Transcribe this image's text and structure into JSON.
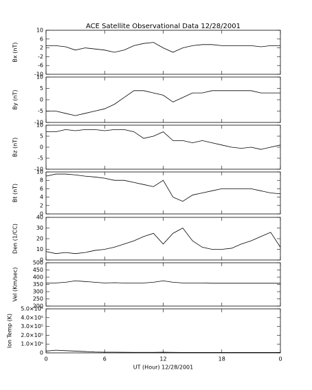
{
  "chart_data": [
    {
      "type": "line",
      "title": "ACE Satellite Observational Data   12/28/2001",
      "ylabel": "Bx (nT)",
      "x": [
        0,
        1,
        2,
        3,
        4,
        5,
        6,
        7,
        8,
        9,
        10,
        11,
        12,
        13,
        14,
        15,
        16,
        17,
        18,
        19,
        20,
        21,
        22,
        23,
        24
      ],
      "values": [
        3,
        3,
        2.5,
        1,
        2,
        1.5,
        1,
        0,
        1,
        3,
        4,
        4.5,
        2,
        0,
        2,
        3,
        3.5,
        3.5,
        3,
        3,
        3,
        3,
        2.5,
        3,
        3
      ],
      "xlim": [
        0,
        24
      ],
      "ylim": [
        -10,
        10
      ],
      "yticks": [
        10,
        6,
        2,
        -2,
        -6,
        -10
      ],
      "color": "#000000"
    },
    {
      "type": "line",
      "ylabel": "By (nT)",
      "x": [
        0,
        1,
        2,
        3,
        4,
        5,
        6,
        7,
        8,
        9,
        10,
        11,
        12,
        13,
        14,
        15,
        16,
        17,
        18,
        19,
        20,
        21,
        22,
        23,
        24
      ],
      "values": [
        -5,
        -5,
        -6,
        -7,
        -6,
        -5,
        -4,
        -2,
        1,
        4,
        4,
        3,
        2,
        -1,
        1,
        3,
        3,
        4,
        4,
        4,
        4,
        4,
        3,
        3,
        3
      ],
      "xlim": [
        0,
        24
      ],
      "ylim": [
        -10,
        10
      ],
      "yticks": [
        10,
        5,
        0,
        -5,
        -10
      ],
      "color": "#000000"
    },
    {
      "type": "line",
      "ylabel": "Bz (nT)",
      "x": [
        0,
        1,
        2,
        3,
        4,
        5,
        6,
        7,
        8,
        9,
        10,
        11,
        12,
        13,
        14,
        15,
        16,
        17,
        18,
        19,
        20,
        21,
        22,
        23,
        24
      ],
      "values": [
        7,
        7,
        8,
        7.5,
        8,
        8,
        7.5,
        8,
        8,
        7,
        4,
        5,
        7,
        3,
        3,
        2,
        3,
        2,
        1,
        0,
        -0.5,
        0,
        -1,
        0,
        1
      ],
      "xlim": [
        0,
        24
      ],
      "ylim": [
        -10,
        10
      ],
      "yticks": [
        10,
        5,
        0,
        -5,
        -10
      ],
      "color": "#000000"
    },
    {
      "type": "line",
      "ylabel": "Bt (nT)",
      "x": [
        0,
        1,
        2,
        3,
        4,
        5,
        6,
        7,
        8,
        9,
        10,
        11,
        12,
        13,
        14,
        15,
        16,
        17,
        18,
        19,
        20,
        21,
        22,
        23,
        24
      ],
      "values": [
        9,
        9.5,
        9.5,
        9.3,
        9,
        8.8,
        8.5,
        8,
        8,
        7.5,
        7,
        6.5,
        8,
        4,
        3,
        4.5,
        5,
        5.5,
        6,
        6,
        6,
        6,
        5.5,
        5,
        4.8
      ],
      "xlim": [
        0,
        24
      ],
      "ylim": [
        0,
        10
      ],
      "yticks": [
        10,
        8,
        6,
        4,
        2,
        0
      ],
      "color": "#000000"
    },
    {
      "type": "line",
      "ylabel": "Den (1/CC)",
      "x": [
        0,
        1,
        2,
        3,
        4,
        5,
        6,
        7,
        8,
        9,
        10,
        11,
        12,
        13,
        14,
        15,
        16,
        17,
        18,
        19,
        20,
        21,
        22,
        23,
        24
      ],
      "values": [
        8,
        6,
        7,
        6,
        7,
        9,
        10,
        12,
        15,
        18,
        22,
        25,
        15,
        25,
        30,
        18,
        12,
        10,
        10,
        11,
        15,
        18,
        22,
        26,
        12
      ],
      "xlim": [
        0,
        24
      ],
      "ylim": [
        0,
        40
      ],
      "yticks": [
        40,
        30,
        20,
        10,
        0
      ],
      "color": "#000000"
    },
    {
      "type": "line",
      "ylabel": "Vel (Km/sec)",
      "x": [
        0,
        1,
        2,
        3,
        4,
        5,
        6,
        7,
        8,
        9,
        10,
        11,
        12,
        13,
        14,
        15,
        16,
        17,
        18,
        19,
        20,
        21,
        22,
        23,
        24
      ],
      "values": [
        360,
        360,
        365,
        375,
        370,
        365,
        360,
        362,
        360,
        360,
        360,
        365,
        375,
        365,
        360,
        360,
        360,
        358,
        358,
        358,
        358,
        358,
        358,
        358,
        358
      ],
      "xlim": [
        0,
        24
      ],
      "ylim": [
        200,
        500
      ],
      "yticks": [
        500,
        450,
        400,
        350,
        300,
        250,
        200
      ],
      "color": "#000000"
    },
    {
      "type": "line",
      "ylabel": "Ion Temp (K)",
      "xlabel": "UT (Hour)   12/28/2001",
      "x": [
        0,
        1,
        2,
        3,
        4,
        5,
        6,
        7,
        8,
        9,
        10,
        11,
        12,
        13,
        14,
        15,
        16,
        17,
        18,
        19,
        20,
        21,
        22,
        23,
        24
      ],
      "values": [
        20000,
        30000,
        25000,
        20000,
        15000,
        10000,
        8000,
        8000,
        7000,
        6000,
        6000,
        6000,
        8000,
        6000,
        5000,
        5000,
        5000,
        5000,
        5000,
        5000,
        5000,
        5000,
        5000,
        5000,
        5000
      ],
      "xlim": [
        0,
        24
      ],
      "ylim": [
        0,
        500000
      ],
      "yticks": [
        {
          "value": 500000,
          "label": "5.0×10⁵"
        },
        {
          "value": 400000,
          "label": "4.0×10⁵"
        },
        {
          "value": 300000,
          "label": "3.0×10⁵"
        },
        {
          "value": 200000,
          "label": "2.0×10⁵"
        },
        {
          "value": 100000,
          "label": "1.0×10⁵"
        },
        0
      ],
      "xticks": [
        0,
        6,
        12,
        18,
        {
          "value": 24,
          "label": "0"
        }
      ],
      "color": "#000000"
    }
  ]
}
